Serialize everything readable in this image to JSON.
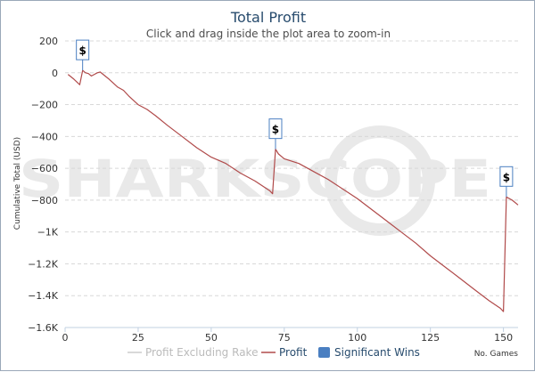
{
  "chart_data": {
    "type": "line",
    "title": "Total Profit",
    "subtitle": "Click and drag inside the plot area to zoom-in",
    "xlabel": "No. Games",
    "ylabel": "Cumulative Total (USD)",
    "xlim": [
      0,
      155
    ],
    "ylim": [
      -1600,
      200
    ],
    "x_ticks": [
      0,
      25,
      50,
      75,
      100,
      125,
      150
    ],
    "x_tick_labels": [
      "0",
      "25",
      "50",
      "75",
      "100",
      "125",
      "150"
    ],
    "y_ticks": [
      200,
      0,
      -200,
      -400,
      -600,
      -800,
      -1000,
      -1200,
      -1400,
      -1600
    ],
    "y_tick_labels": [
      "200",
      "0",
      "−200",
      "−400",
      "−600",
      "−800",
      "−1K",
      "−1.2K",
      "−1.4K",
      "−1.6K"
    ],
    "grid": true,
    "legend_position": "bottom-center",
    "series": [
      {
        "name": "Profit",
        "color": "#b04a4a",
        "x": [
          1,
          3,
          5,
          6,
          7,
          8,
          9,
          10,
          11,
          12,
          15,
          18,
          20,
          22,
          25,
          28,
          31,
          35,
          40,
          45,
          50,
          55,
          60,
          65,
          70,
          71,
          72,
          73,
          75,
          80,
          85,
          90,
          95,
          100,
          105,
          110,
          115,
          120,
          125,
          130,
          135,
          140,
          145,
          149,
          150,
          151,
          153,
          155
        ],
        "y": [
          -10,
          -40,
          -75,
          15,
          0,
          -5,
          -20,
          -10,
          0,
          5,
          -40,
          -90,
          -110,
          -150,
          -200,
          -230,
          -270,
          -330,
          -400,
          -470,
          -530,
          -570,
          -630,
          -680,
          -740,
          -760,
          -480,
          -510,
          -540,
          -570,
          -620,
          -670,
          -730,
          -790,
          -860,
          -930,
          -1000,
          -1070,
          -1150,
          -1220,
          -1290,
          -1360,
          -1430,
          -1480,
          -1500,
          -780,
          -800,
          -830
        ]
      }
    ],
    "legend_items": [
      {
        "label": "Profit Excluding Rake",
        "color": "#cccccc",
        "kind": "line",
        "disabled": true
      },
      {
        "label": "Profit",
        "color": "#b04a4a",
        "kind": "line"
      },
      {
        "label": "Significant Wins",
        "color": "#4a7fc1",
        "kind": "box"
      }
    ],
    "significant_wins": [
      {
        "x": 6,
        "y": 15,
        "label": "$"
      },
      {
        "x": 72,
        "y": -480,
        "label": "$"
      },
      {
        "x": 151,
        "y": -780,
        "label": "$"
      }
    ],
    "watermark": "SHARKSCOPE"
  }
}
